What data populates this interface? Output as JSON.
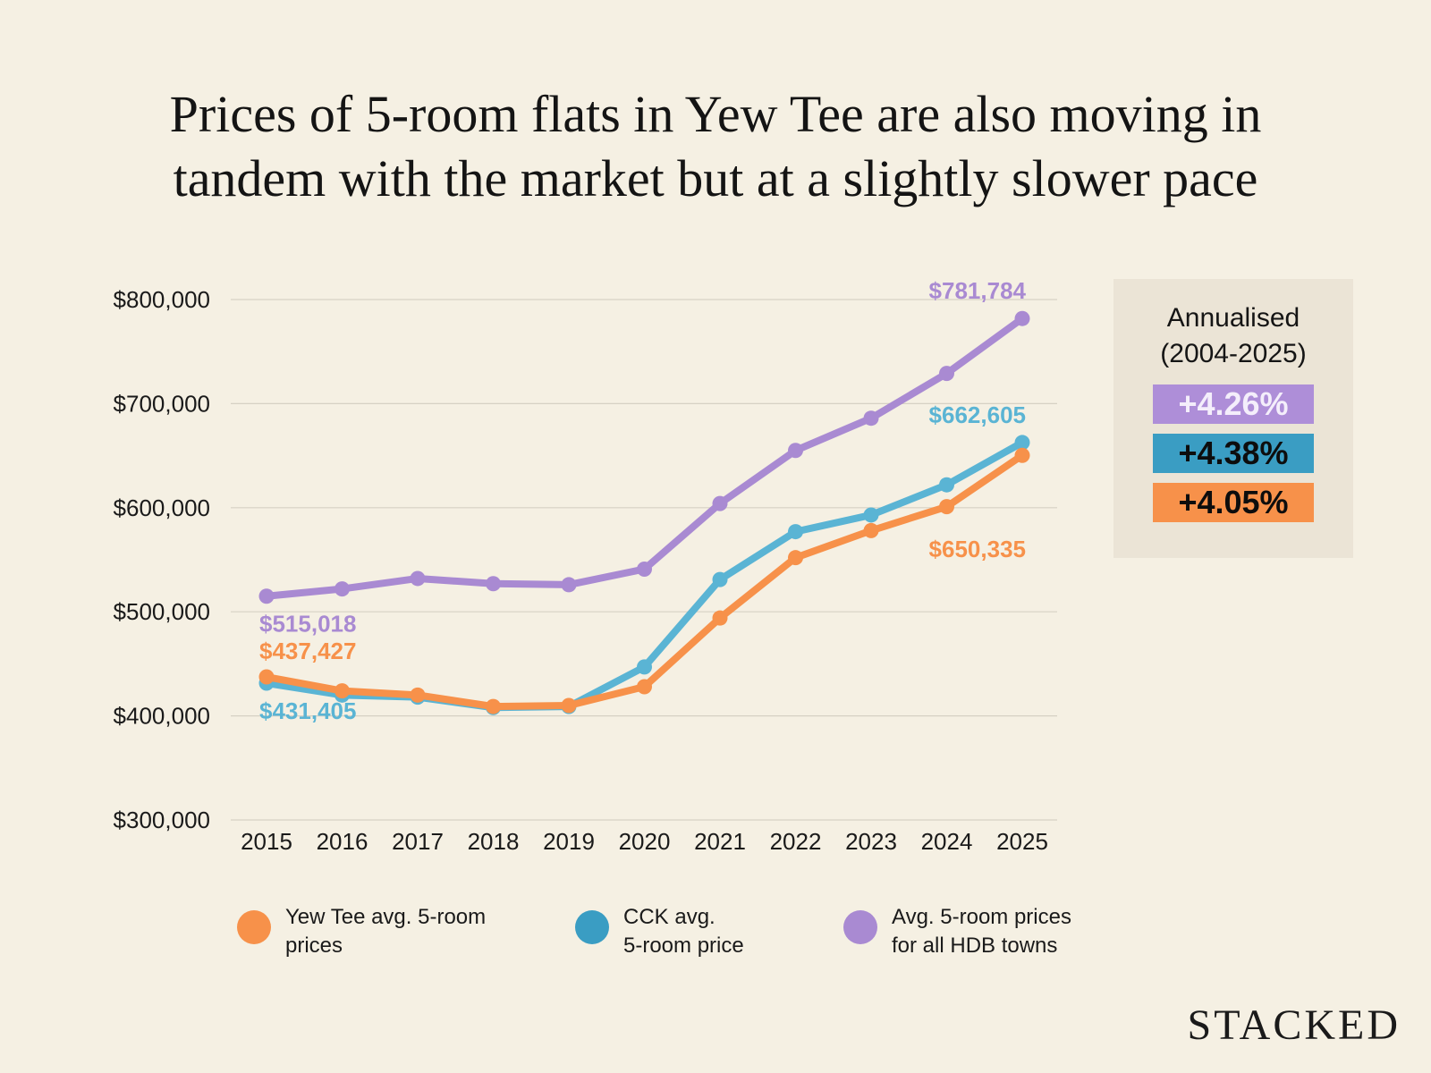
{
  "title": {
    "line1": "Prices of 5-room flats in Yew Tee are also moving in",
    "line2": "tandem with the market but at a slightly slower pace"
  },
  "colors": {
    "background": "#f5f0e3",
    "yew_tee": "#f7914a",
    "cck": "#5ab4d4",
    "all_hdb": "#a98ad2",
    "badge_purple": "#ae8ed8",
    "badge_blue": "#3a9dc3",
    "badge_orange": "#f7914a",
    "grid": "#d6d1c4"
  },
  "chart_data": {
    "type": "line",
    "title": "Prices of 5-room flats in Yew Tee are also moving in tandem with the market but at a slightly slower pace",
    "xlabel": "",
    "ylabel": "",
    "categories": [
      "2015",
      "2016",
      "2017",
      "2018",
      "2019",
      "2020",
      "2021",
      "2022",
      "2023",
      "2024",
      "2025"
    ],
    "ylim": [
      300000,
      800000
    ],
    "yticks": [
      300000,
      400000,
      500000,
      600000,
      700000,
      800000
    ],
    "ytick_labels": [
      "$300,000",
      "$400,000",
      "$500,000",
      "$600,000",
      "$700,000",
      "$800,000"
    ],
    "grid": true,
    "series": [
      {
        "key": "all_hdb",
        "name": "Avg. 5-room prices for all HDB towns",
        "values": [
          515018,
          522000,
          532000,
          527000,
          526000,
          541000,
          604000,
          655000,
          686000,
          729000,
          781784
        ],
        "labels": [
          {
            "index": 0,
            "text": "$515,018",
            "position": "below"
          },
          {
            "index": 10,
            "text": "$781,784",
            "position": "above"
          }
        ]
      },
      {
        "key": "cck",
        "name": "CCK avg. 5-room price",
        "values": [
          431405,
          420000,
          418000,
          408000,
          409000,
          447000,
          531000,
          577000,
          593000,
          622000,
          662605
        ],
        "labels": [
          {
            "index": 0,
            "text": "$431,405",
            "position": "below"
          },
          {
            "index": 10,
            "text": "$662,605",
            "position": "above"
          }
        ]
      },
      {
        "key": "yew_tee",
        "name": "Yew Tee avg. 5-room prices",
        "values": [
          437427,
          424000,
          420000,
          409000,
          410000,
          428000,
          494000,
          552000,
          578000,
          601000,
          650335
        ],
        "labels": [
          {
            "index": 0,
            "text": "$437,427",
            "position": "above"
          },
          {
            "index": 10,
            "text": "$650,335",
            "position": "below"
          }
        ]
      }
    ]
  },
  "annualised": {
    "title_line1": "Annualised",
    "title_line2": "(2004-2025)",
    "badges": [
      {
        "text": "+4.26%",
        "bg": "#ae8ed8",
        "fg": "#f4eefb"
      },
      {
        "text": "+4.38%",
        "bg": "#3a9dc3",
        "fg": "#0d0d0d"
      },
      {
        "text": "+4.05%",
        "bg": "#f7914a",
        "fg": "#0d0d0d"
      }
    ]
  },
  "legend": [
    {
      "line1": "Yew Tee avg. 5-room",
      "line2": "prices",
      "color": "#f7914a"
    },
    {
      "line1": "CCK avg.",
      "line2": "5-room price",
      "color": "#3a9dc3"
    },
    {
      "line1": "Avg. 5-room prices",
      "line2": "for all HDB towns",
      "color": "#a98ad2"
    }
  ],
  "logo": "STACKED"
}
